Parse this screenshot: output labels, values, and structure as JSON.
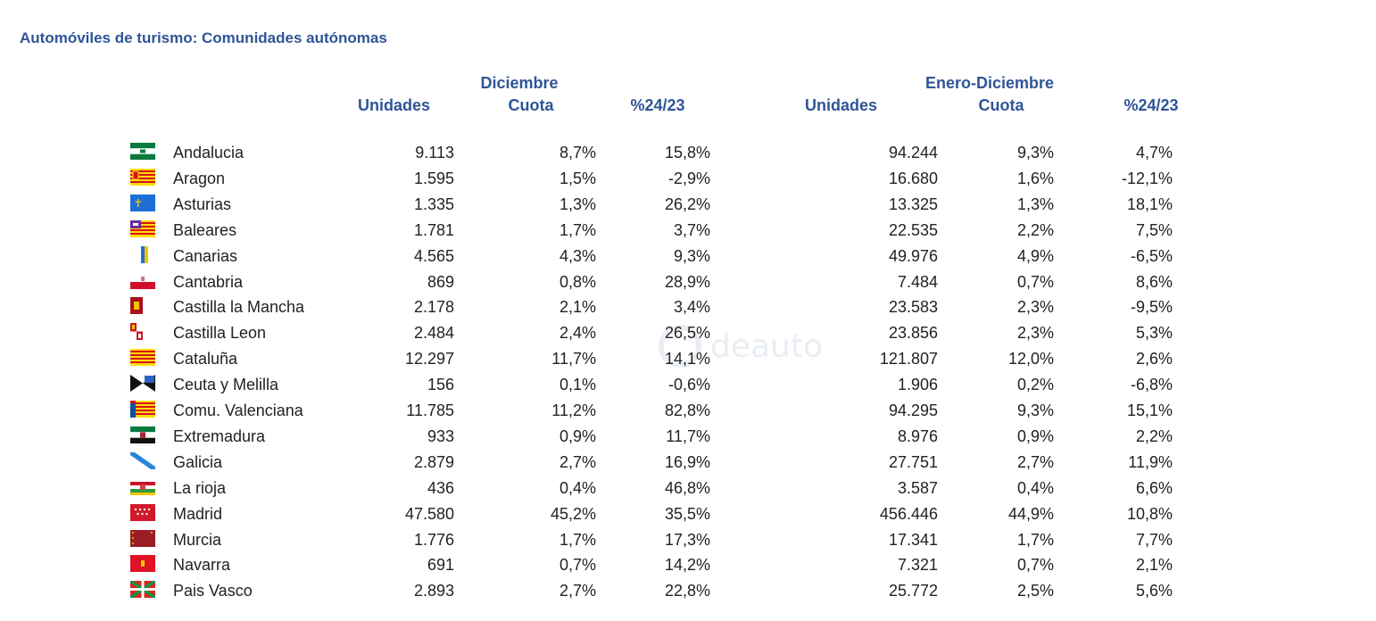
{
  "title": "Automóviles de turismo: Comunidades autónomas",
  "headers": {
    "group1": "Diciembre",
    "group2": "Enero-Diciembre",
    "units1": "Unidades",
    "share1": "Cuota",
    "pct1": "%24/23",
    "units2": "Unidades",
    "share2": "Cuota",
    "pct2": "%24/23"
  },
  "watermark": "deauto",
  "rows": [
    {
      "name": "Andalucia",
      "flag": "andalucia-flag",
      "u1": "9.113",
      "c1": "8,7%",
      "p1": "15,8%",
      "u2": "94.244",
      "c2": "9,3%",
      "p2": "4,7%"
    },
    {
      "name": "Aragon",
      "flag": "aragon-flag",
      "u1": "1.595",
      "c1": "1,5%",
      "p1": "-2,9%",
      "u2": "16.680",
      "c2": "1,6%",
      "p2": "-12,1%"
    },
    {
      "name": "Asturias",
      "flag": "asturias-flag",
      "u1": "1.335",
      "c1": "1,3%",
      "p1": "26,2%",
      "u2": "13.325",
      "c2": "1,3%",
      "p2": "18,1%"
    },
    {
      "name": "Baleares",
      "flag": "baleares-flag",
      "u1": "1.781",
      "c1": "1,7%",
      "p1": "3,7%",
      "u2": "22.535",
      "c2": "2,2%",
      "p2": "7,5%"
    },
    {
      "name": "Canarias",
      "flag": "canarias-flag",
      "u1": "4.565",
      "c1": "4,3%",
      "p1": "9,3%",
      "u2": "49.976",
      "c2": "4,9%",
      "p2": "-6,5%"
    },
    {
      "name": "Cantabria",
      "flag": "cantabria-flag",
      "u1": "869",
      "c1": "0,8%",
      "p1": "28,9%",
      "u2": "7.484",
      "c2": "0,7%",
      "p2": "8,6%"
    },
    {
      "name": "Castilla la Mancha",
      "flag": "castilla-la-mancha-flag",
      "u1": "2.178",
      "c1": "2,1%",
      "p1": "3,4%",
      "u2": "23.583",
      "c2": "2,3%",
      "p2": "-9,5%"
    },
    {
      "name": "Castilla Leon",
      "flag": "castilla-leon-flag",
      "u1": "2.484",
      "c1": "2,4%",
      "p1": "26,5%",
      "u2": "23.856",
      "c2": "2,3%",
      "p2": "5,3%"
    },
    {
      "name": "Cataluña",
      "flag": "cataluna-flag",
      "u1": "12.297",
      "c1": "11,7%",
      "p1": "14,1%",
      "u2": "121.807",
      "c2": "12,0%",
      "p2": "2,6%"
    },
    {
      "name": "Ceuta y Melilla",
      "flag": "ceuta-melilla-flag",
      "u1": "156",
      "c1": "0,1%",
      "p1": "-0,6%",
      "u2": "1.906",
      "c2": "0,2%",
      "p2": "-6,8%"
    },
    {
      "name": "Comu. Valenciana",
      "flag": "valenciana-flag",
      "u1": "11.785",
      "c1": "11,2%",
      "p1": "82,8%",
      "u2": "94.295",
      "c2": "9,3%",
      "p2": "15,1%"
    },
    {
      "name": "Extremadura",
      "flag": "extremadura-flag",
      "u1": "933",
      "c1": "0,9%",
      "p1": "11,7%",
      "u2": "8.976",
      "c2": "0,9%",
      "p2": "2,2%"
    },
    {
      "name": "Galicia",
      "flag": "galicia-flag",
      "u1": "2.879",
      "c1": "2,7%",
      "p1": "16,9%",
      "u2": "27.751",
      "c2": "2,7%",
      "p2": "11,9%"
    },
    {
      "name": "La rioja",
      "flag": "la-rioja-flag",
      "u1": "436",
      "c1": "0,4%",
      "p1": "46,8%",
      "u2": "3.587",
      "c2": "0,4%",
      "p2": "6,6%"
    },
    {
      "name": "Madrid",
      "flag": "madrid-flag",
      "u1": "47.580",
      "c1": "45,2%",
      "p1": "35,5%",
      "u2": "456.446",
      "c2": "44,9%",
      "p2": "10,8%"
    },
    {
      "name": "Murcia",
      "flag": "murcia-flag",
      "u1": "1.776",
      "c1": "1,7%",
      "p1": "17,3%",
      "u2": "17.341",
      "c2": "1,7%",
      "p2": "7,7%"
    },
    {
      "name": "Navarra",
      "flag": "navarra-flag",
      "u1": "691",
      "c1": "0,7%",
      "p1": "14,2%",
      "u2": "7.321",
      "c2": "0,7%",
      "p2": "2,1%"
    },
    {
      "name": "Pais Vasco",
      "flag": "pais-vasco-flag",
      "u1": "2.893",
      "c1": "2,7%",
      "p1": "22,8%",
      "u2": "25.772",
      "c2": "2,5%",
      "p2": "5,6%"
    }
  ]
}
